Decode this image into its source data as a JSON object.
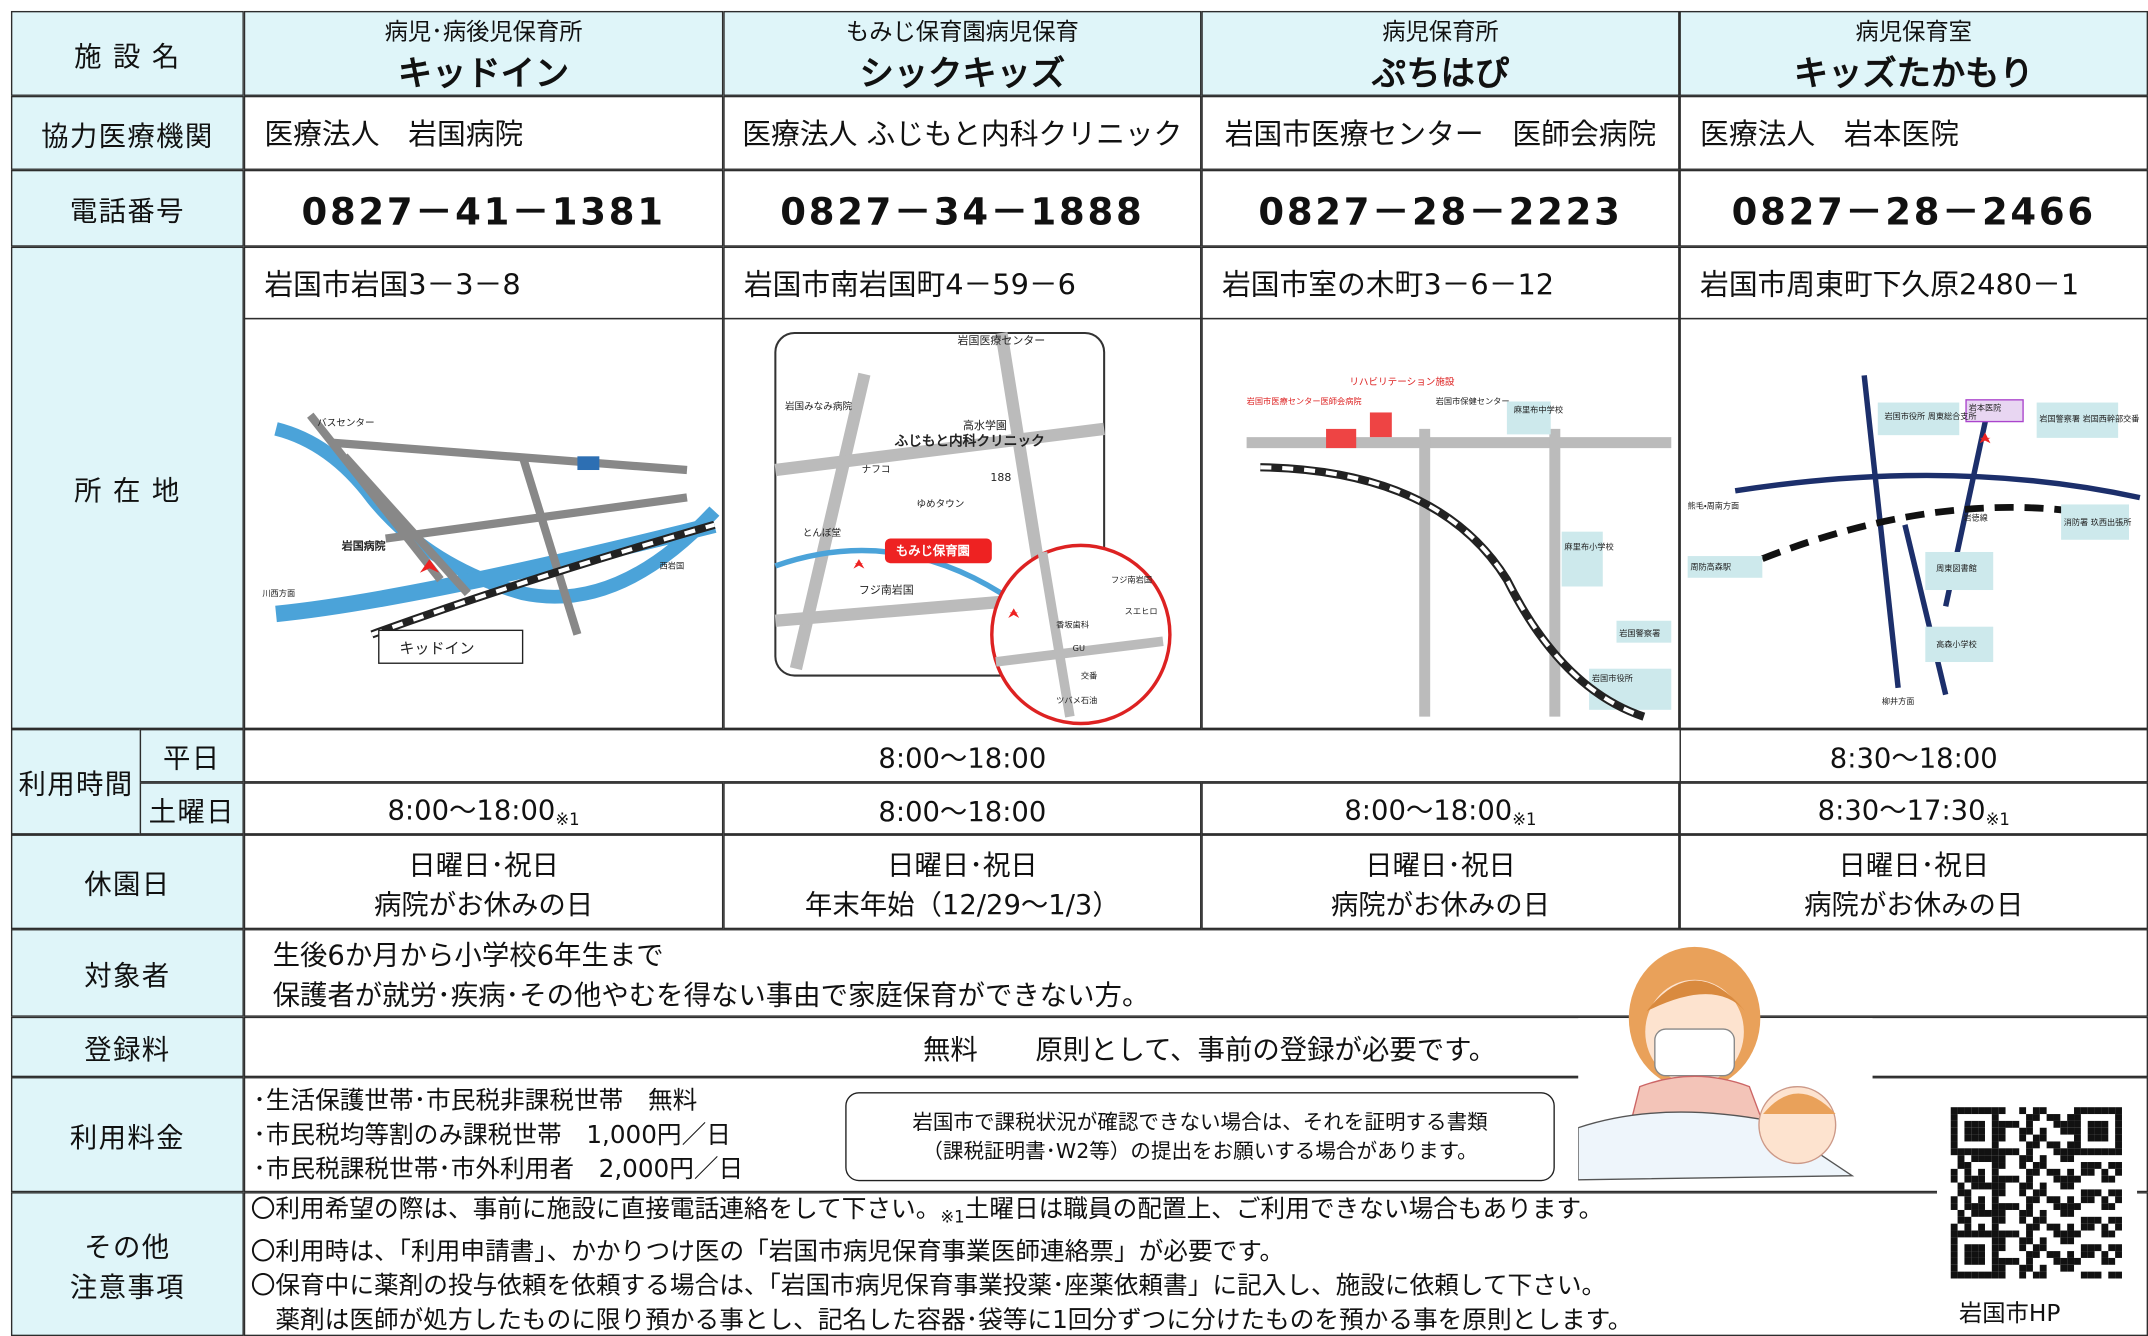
{
  "header": {
    "label": "施 設 名",
    "facilities": [
      {
        "subtitle": "病児･病後児保育所",
        "name": "キッドイン"
      },
      {
        "subtitle": "もみじ保育園病児保育",
        "name": "シックキッズ"
      },
      {
        "subtitle": "病児保育所",
        "name": "ぷちはぴ"
      },
      {
        "subtitle": "病児保育室",
        "name": "キッズたかもり"
      }
    ]
  },
  "partner": {
    "label": "協力医療機関",
    "values": [
      "医療法人　岩国病院",
      "医療法人 ふじもと内科クリニック",
      "岩国市医療センター　医師会病院",
      "医療法人　岩本医院"
    ]
  },
  "phone": {
    "label": "電話番号",
    "values": [
      "0827－41－1381",
      "0827－34－1888",
      "0827－28－2223",
      "0827－28－2466"
    ]
  },
  "location": {
    "label": "所 在 地",
    "addresses": [
      "岩国市岩国3－3－8",
      "岩国市南岩国町4－59－6",
      "岩国市室の木町3－6－12",
      "岩国市周東町下久原2480－1"
    ]
  },
  "maps": [
    {
      "labels": [
        "バスセンター",
        "岩国病院",
        "川西方面",
        "西岩国",
        "キッドイン"
      ]
    },
    {
      "labels": [
        "岩国医療センター",
        "岩国みなみ病院",
        "高水学園",
        "ふじもと内科クリニック",
        "ナフコ",
        "ゆめタウン",
        "とんぼ堂",
        "もみじ保育園",
        "フジ南岩国",
        "188",
        "フジ南岩国",
        "スエヒロ",
        "香坂歯科",
        "GU",
        "交番",
        "ツバメ石油"
      ]
    },
    {
      "labels": [
        "リハビリテーション施設",
        "岩国市医療センター医師会病院",
        "岩国市保健センター",
        "麻里布中学校",
        "麻里布小学校",
        "岩国警察署",
        "岩国市役所"
      ]
    },
    {
      "labels": [
        "岩国市役所 周東総合支所",
        "岩本医院",
        "岩国警察署 岩国西幹部交番",
        "熊毛・周南方面",
        "岩徳線",
        "消防署 玖西出張所",
        "周防高森駅",
        "周東図書館",
        "高森小学校",
        "柳井方面"
      ]
    }
  ],
  "hours": {
    "label": "利用時間",
    "weekday_label": "平日",
    "weekday": [
      "8:00～18:00",
      "8:30～18:00"
    ],
    "saturday_label": "土曜日",
    "saturday": [
      {
        "time": "8:00～18:00",
        "note": "※1"
      },
      {
        "time": "8:00～18:00"
      },
      {
        "time": "8:00～18:00",
        "note": "※1"
      },
      {
        "time": "8:30～17:30",
        "note": "※1"
      }
    ]
  },
  "closed": {
    "label": "休園日",
    "values": [
      [
        "日曜日･祝日",
        "病院がお休みの日"
      ],
      [
        "日曜日･祝日",
        "年末年始（12/29～1/3）"
      ],
      [
        "日曜日･祝日",
        "病院がお休みの日"
      ],
      [
        "日曜日･祝日",
        "病院がお休みの日"
      ]
    ]
  },
  "target": {
    "label": "対象者",
    "lines": [
      "生後6か月から小学校6年生まで",
      "保護者が就労･疾病･その他やむを得ない事由で家庭保育ができない方。"
    ]
  },
  "registration": {
    "label": "登録料",
    "fee": "無料",
    "text": "原則として、事前の登録が必要です。"
  },
  "fees": {
    "label": "利用料金",
    "lines": [
      "･生活保護世帯･市民税非課税世帯　無料",
      "･市民税均等割のみ課税世帯　1,000円／日",
      "･市民税課税世帯･市外利用者　2,000円／日"
    ],
    "note": [
      "岩国市で課税状況が確認できない場合は、それを証明する書類",
      "（課税証明書･W2等）の提出をお願いする場合があります。"
    ]
  },
  "notes": {
    "label": [
      "その他",
      "注意事項"
    ],
    "lines": [
      [
        "〇利用希望の際は、事前に施設に直接電話連絡をして下さい。",
        "※1",
        "土曜日は職員の配置上、ご利用できない場合もあります。"
      ],
      [
        "〇利用時は、「利用申請書」、かかりつけ医の「岩国市病児保育事業医師連絡票」が必要です。"
      ],
      [
        "〇保育中に薬剤の投与依頼を依頼する場合は、「岩国市病児保育事業投薬･座薬依頼書」に記入し、施設に依頼して下さい。"
      ],
      [
        "　薬剤は医師が処方したものに限り預かる事とし、記名した容器･袋等に1回分ずつに分けたものを預かる事を原則とします。"
      ]
    ]
  },
  "qr_label": "岩国市HP"
}
